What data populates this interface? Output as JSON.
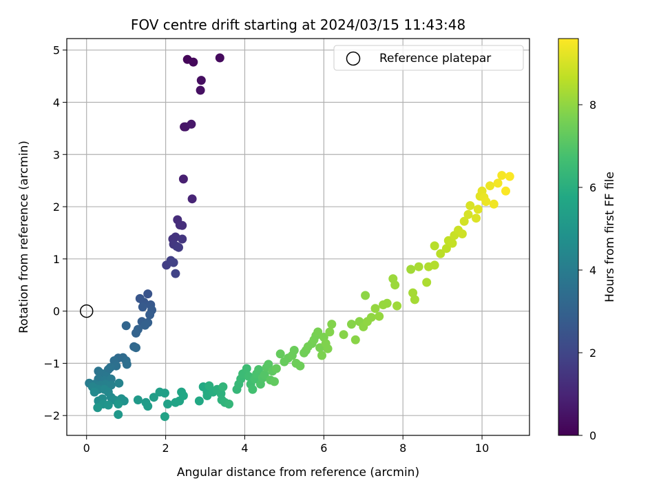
{
  "chart_data": {
    "type": "scatter",
    "title": "FOV centre drift starting at 2024/03/15 11:43:48",
    "xlabel": "Angular distance from reference (arcmin)",
    "ylabel": "Rotation from reference (arcmin)",
    "xlim": [
      -0.5,
      11.2
    ],
    "ylim": [
      -2.38,
      5.22
    ],
    "xticks": [
      0,
      2,
      4,
      6,
      8,
      10
    ],
    "yticks": [
      -2,
      -1,
      0,
      1,
      2,
      3,
      4,
      5
    ],
    "grid": true,
    "legend": {
      "location": "top-right",
      "entries": [
        "Reference platepar"
      ]
    },
    "reference_point": {
      "x": 0,
      "y": 0
    },
    "colorbar": {
      "label": "Hours from first FF file",
      "range": [
        0,
        9.6
      ],
      "ticks": [
        0,
        2,
        4,
        6,
        8
      ],
      "colormap": "viridis"
    },
    "series": [
      {
        "points": [
          {
            "x": 2.55,
            "y": 4.82,
            "h": 0.15
          },
          {
            "x": 2.7,
            "y": 4.77,
            "h": 0.2
          },
          {
            "x": 3.37,
            "y": 4.85,
            "h": 0.25
          },
          {
            "x": 2.9,
            "y": 4.42,
            "h": 0.35
          },
          {
            "x": 2.88,
            "y": 4.23,
            "h": 0.4
          },
          {
            "x": 2.47,
            "y": 3.53,
            "h": 0.5
          },
          {
            "x": 2.5,
            "y": 3.53,
            "h": 0.55
          },
          {
            "x": 2.65,
            "y": 3.58,
            "h": 0.6
          },
          {
            "x": 2.45,
            "y": 2.53,
            "h": 0.85
          },
          {
            "x": 2.67,
            "y": 2.15,
            "h": 1.0
          },
          {
            "x": 2.3,
            "y": 1.75,
            "h": 1.2
          },
          {
            "x": 2.36,
            "y": 1.65,
            "h": 1.25
          },
          {
            "x": 2.42,
            "y": 1.64,
            "h": 1.3
          },
          {
            "x": 2.18,
            "y": 1.38,
            "h": 1.4
          },
          {
            "x": 2.25,
            "y": 1.42,
            "h": 1.45
          },
          {
            "x": 2.42,
            "y": 1.38,
            "h": 1.5
          },
          {
            "x": 2.2,
            "y": 1.28,
            "h": 1.55
          },
          {
            "x": 2.28,
            "y": 1.24,
            "h": 1.6
          },
          {
            "x": 2.33,
            "y": 1.22,
            "h": 1.65
          },
          {
            "x": 2.02,
            "y": 0.88,
            "h": 1.75
          },
          {
            "x": 2.13,
            "y": 0.97,
            "h": 1.8
          },
          {
            "x": 2.2,
            "y": 0.93,
            "h": 1.85
          },
          {
            "x": 2.25,
            "y": 0.72,
            "h": 1.9
          },
          {
            "x": 1.55,
            "y": 0.33,
            "h": 2.5
          },
          {
            "x": 1.35,
            "y": 0.24,
            "h": 2.55
          },
          {
            "x": 1.45,
            "y": 0.17,
            "h": 2.6
          },
          {
            "x": 1.62,
            "y": 0.12,
            "h": 2.65
          },
          {
            "x": 1.42,
            "y": 0.08,
            "h": 2.7
          },
          {
            "x": 1.65,
            "y": 0.02,
            "h": 2.75
          },
          {
            "x": 1.6,
            "y": -0.07,
            "h": 2.8
          },
          {
            "x": 1.4,
            "y": -0.2,
            "h": 2.85
          },
          {
            "x": 1.55,
            "y": -0.22,
            "h": 2.9
          },
          {
            "x": 1.48,
            "y": -0.27,
            "h": 2.95
          },
          {
            "x": 1.3,
            "y": -0.35,
            "h": 3.0
          },
          {
            "x": 1.25,
            "y": -0.42,
            "h": 3.05
          },
          {
            "x": 1.0,
            "y": -0.28,
            "h": 3.1
          },
          {
            "x": 1.2,
            "y": -0.68,
            "h": 3.2
          },
          {
            "x": 1.25,
            "y": -0.7,
            "h": 3.25
          },
          {
            "x": 0.8,
            "y": -0.9,
            "h": 3.3
          },
          {
            "x": 0.92,
            "y": -0.89,
            "h": 3.35
          },
          {
            "x": 1.0,
            "y": -0.95,
            "h": 3.4
          },
          {
            "x": 0.7,
            "y": -0.95,
            "h": 3.45
          },
          {
            "x": 1.02,
            "y": -1.02,
            "h": 3.5
          },
          {
            "x": 0.75,
            "y": -1.05,
            "h": 3.55
          },
          {
            "x": 0.6,
            "y": -1.08,
            "h": 3.6
          },
          {
            "x": 0.55,
            "y": -1.12,
            "h": 3.65
          },
          {
            "x": 0.3,
            "y": -1.15,
            "h": 3.7
          },
          {
            "x": 0.4,
            "y": -1.2,
            "h": 3.75
          },
          {
            "x": 0.5,
            "y": -1.25,
            "h": 3.8
          },
          {
            "x": 0.3,
            "y": -1.3,
            "h": 3.85
          },
          {
            "x": 0.45,
            "y": -1.33,
            "h": 3.9
          },
          {
            "x": 0.62,
            "y": -1.3,
            "h": 3.95
          },
          {
            "x": 0.07,
            "y": -1.38,
            "h": 4.0
          },
          {
            "x": 0.2,
            "y": -1.4,
            "h": 4.05
          },
          {
            "x": 0.35,
            "y": -1.42,
            "h": 4.1
          },
          {
            "x": 0.48,
            "y": -1.4,
            "h": 4.15
          },
          {
            "x": 0.62,
            "y": -1.42,
            "h": 4.2
          },
          {
            "x": 0.82,
            "y": -1.38,
            "h": 4.25
          },
          {
            "x": 0.15,
            "y": -1.45,
            "h": 4.3
          },
          {
            "x": 0.3,
            "y": -1.5,
            "h": 4.35
          },
          {
            "x": 0.45,
            "y": -1.5,
            "h": 4.4
          },
          {
            "x": 0.55,
            "y": -1.55,
            "h": 4.45
          },
          {
            "x": 0.2,
            "y": -1.55,
            "h": 4.5
          },
          {
            "x": 0.62,
            "y": -1.65,
            "h": 4.55
          },
          {
            "x": 0.4,
            "y": -1.68,
            "h": 4.6
          },
          {
            "x": 0.3,
            "y": -1.72,
            "h": 4.65
          },
          {
            "x": 0.7,
            "y": -1.7,
            "h": 4.7
          },
          {
            "x": 0.78,
            "y": -1.72,
            "h": 4.75
          },
          {
            "x": 0.88,
            "y": -1.68,
            "h": 4.8
          },
          {
            "x": 0.95,
            "y": -1.72,
            "h": 4.85
          },
          {
            "x": 0.42,
            "y": -1.78,
            "h": 4.9
          },
          {
            "x": 0.55,
            "y": -1.8,
            "h": 4.95
          },
          {
            "x": 0.28,
            "y": -1.85,
            "h": 5.0
          },
          {
            "x": 0.8,
            "y": -1.78,
            "h": 5.05
          },
          {
            "x": 0.8,
            "y": -1.98,
            "h": 5.1
          },
          {
            "x": 1.3,
            "y": -1.7,
            "h": 5.15
          },
          {
            "x": 1.5,
            "y": -1.75,
            "h": 5.2
          },
          {
            "x": 1.55,
            "y": -1.82,
            "h": 5.25
          },
          {
            "x": 1.7,
            "y": -1.65,
            "h": 5.3
          },
          {
            "x": 1.85,
            "y": -1.55,
            "h": 5.35
          },
          {
            "x": 1.98,
            "y": -1.57,
            "h": 5.4
          },
          {
            "x": 2.05,
            "y": -1.78,
            "h": 5.45
          },
          {
            "x": 1.98,
            "y": -2.02,
            "h": 5.5
          },
          {
            "x": 2.25,
            "y": -1.75,
            "h": 5.55
          },
          {
            "x": 2.35,
            "y": -1.72,
            "h": 5.6
          },
          {
            "x": 2.4,
            "y": -1.55,
            "h": 5.65
          },
          {
            "x": 2.45,
            "y": -1.62,
            "h": 5.7
          },
          {
            "x": 2.85,
            "y": -1.72,
            "h": 5.75
          },
          {
            "x": 2.95,
            "y": -1.45,
            "h": 5.8
          },
          {
            "x": 3.05,
            "y": -1.55,
            "h": 5.85
          },
          {
            "x": 3.05,
            "y": -1.62,
            "h": 5.9
          },
          {
            "x": 3.2,
            "y": -1.55,
            "h": 5.95
          },
          {
            "x": 3.1,
            "y": -1.43,
            "h": 6.0
          },
          {
            "x": 3.3,
            "y": -1.5,
            "h": 6.05
          },
          {
            "x": 3.4,
            "y": -1.58,
            "h": 6.1
          },
          {
            "x": 3.42,
            "y": -1.7,
            "h": 6.15
          },
          {
            "x": 3.5,
            "y": -1.75,
            "h": 6.2
          },
          {
            "x": 3.45,
            "y": -1.45,
            "h": 6.25
          },
          {
            "x": 3.6,
            "y": -1.78,
            "h": 6.3
          },
          {
            "x": 3.8,
            "y": -1.5,
            "h": 6.35
          },
          {
            "x": 3.85,
            "y": -1.4,
            "h": 6.4
          },
          {
            "x": 3.9,
            "y": -1.3,
            "h": 6.45
          },
          {
            "x": 3.95,
            "y": -1.2,
            "h": 6.5
          },
          {
            "x": 4.05,
            "y": -1.1,
            "h": 6.55
          },
          {
            "x": 4.1,
            "y": -1.25,
            "h": 6.6
          },
          {
            "x": 4.15,
            "y": -1.4,
            "h": 6.65
          },
          {
            "x": 4.2,
            "y": -1.5,
            "h": 6.7
          },
          {
            "x": 4.25,
            "y": -1.3,
            "h": 6.75
          },
          {
            "x": 4.3,
            "y": -1.2,
            "h": 6.8
          },
          {
            "x": 4.35,
            "y": -1.12,
            "h": 6.85
          },
          {
            "x": 4.4,
            "y": -1.4,
            "h": 6.9
          },
          {
            "x": 4.45,
            "y": -1.28,
            "h": 6.95
          },
          {
            "x": 4.5,
            "y": -1.22,
            "h": 7.0
          },
          {
            "x": 4.55,
            "y": -1.08,
            "h": 7.05
          },
          {
            "x": 4.6,
            "y": -1.02,
            "h": 7.1
          },
          {
            "x": 4.65,
            "y": -1.32,
            "h": 7.15
          },
          {
            "x": 4.7,
            "y": -1.15,
            "h": 7.2
          },
          {
            "x": 4.75,
            "y": -1.35,
            "h": 7.25
          },
          {
            "x": 4.8,
            "y": -1.1,
            "h": 7.3
          },
          {
            "x": 4.9,
            "y": -0.82,
            "h": 7.3
          },
          {
            "x": 5.0,
            "y": -0.97,
            "h": 7.35
          },
          {
            "x": 5.1,
            "y": -0.9,
            "h": 7.35
          },
          {
            "x": 5.2,
            "y": -0.85,
            "h": 7.4
          },
          {
            "x": 5.25,
            "y": -0.75,
            "h": 7.4
          },
          {
            "x": 5.3,
            "y": -1.0,
            "h": 7.45
          },
          {
            "x": 5.4,
            "y": -1.05,
            "h": 7.45
          },
          {
            "x": 5.5,
            "y": -0.8,
            "h": 7.5
          },
          {
            "x": 5.55,
            "y": -0.75,
            "h": 7.5
          },
          {
            "x": 5.6,
            "y": -0.68,
            "h": 7.55
          },
          {
            "x": 5.7,
            "y": -0.62,
            "h": 7.55
          },
          {
            "x": 5.75,
            "y": -0.55,
            "h": 7.6
          },
          {
            "x": 5.8,
            "y": -0.47,
            "h": 7.6
          },
          {
            "x": 5.85,
            "y": -0.4,
            "h": 7.65
          },
          {
            "x": 5.9,
            "y": -0.7,
            "h": 7.65
          },
          {
            "x": 5.95,
            "y": -0.85,
            "h": 7.7
          },
          {
            "x": 6.0,
            "y": -0.5,
            "h": 7.7
          },
          {
            "x": 6.05,
            "y": -0.62,
            "h": 7.75
          },
          {
            "x": 6.1,
            "y": -0.72,
            "h": 7.75
          },
          {
            "x": 6.15,
            "y": -0.4,
            "h": 7.8
          },
          {
            "x": 6.2,
            "y": -0.25,
            "h": 7.8
          },
          {
            "x": 6.5,
            "y": -0.45,
            "h": 7.85
          },
          {
            "x": 6.7,
            "y": -0.25,
            "h": 7.85
          },
          {
            "x": 6.8,
            "y": -0.55,
            "h": 7.9
          },
          {
            "x": 6.9,
            "y": -0.2,
            "h": 7.9
          },
          {
            "x": 7.0,
            "y": -0.3,
            "h": 7.95
          },
          {
            "x": 7.05,
            "y": 0.3,
            "h": 7.95
          },
          {
            "x": 7.1,
            "y": -0.2,
            "h": 8.0
          },
          {
            "x": 7.2,
            "y": -0.12,
            "h": 8.0
          },
          {
            "x": 7.3,
            "y": 0.05,
            "h": 8.05
          },
          {
            "x": 7.4,
            "y": -0.1,
            "h": 8.05
          },
          {
            "x": 7.5,
            "y": 0.12,
            "h": 8.1
          },
          {
            "x": 7.6,
            "y": 0.15,
            "h": 8.1
          },
          {
            "x": 7.75,
            "y": 0.62,
            "h": 8.15
          },
          {
            "x": 7.8,
            "y": 0.5,
            "h": 8.15
          },
          {
            "x": 7.85,
            "y": 0.1,
            "h": 8.2
          },
          {
            "x": 8.2,
            "y": 0.8,
            "h": 8.25
          },
          {
            "x": 8.25,
            "y": 0.35,
            "h": 8.3
          },
          {
            "x": 8.3,
            "y": 0.22,
            "h": 8.3
          },
          {
            "x": 8.4,
            "y": 0.85,
            "h": 8.35
          },
          {
            "x": 8.6,
            "y": 0.55,
            "h": 8.4
          },
          {
            "x": 8.65,
            "y": 0.85,
            "h": 8.45
          },
          {
            "x": 8.8,
            "y": 0.88,
            "h": 8.5
          },
          {
            "x": 8.8,
            "y": 1.25,
            "h": 8.55
          },
          {
            "x": 8.95,
            "y": 1.1,
            "h": 8.6
          },
          {
            "x": 9.1,
            "y": 1.2,
            "h": 8.65
          },
          {
            "x": 9.15,
            "y": 1.35,
            "h": 8.7
          },
          {
            "x": 9.25,
            "y": 1.3,
            "h": 8.75
          },
          {
            "x": 9.3,
            "y": 1.45,
            "h": 8.8
          },
          {
            "x": 9.4,
            "y": 1.55,
            "h": 8.85
          },
          {
            "x": 9.5,
            "y": 1.48,
            "h": 8.9
          },
          {
            "x": 9.55,
            "y": 1.72,
            "h": 8.95
          },
          {
            "x": 9.65,
            "y": 1.85,
            "h": 9.0
          },
          {
            "x": 9.7,
            "y": 2.02,
            "h": 9.05
          },
          {
            "x": 9.85,
            "y": 1.78,
            "h": 9.1
          },
          {
            "x": 9.9,
            "y": 1.95,
            "h": 9.15
          },
          {
            "x": 9.95,
            "y": 2.2,
            "h": 9.2
          },
          {
            "x": 10.0,
            "y": 2.3,
            "h": 9.25
          },
          {
            "x": 10.05,
            "y": 2.18,
            "h": 9.3
          },
          {
            "x": 10.1,
            "y": 2.1,
            "h": 9.35
          },
          {
            "x": 10.2,
            "y": 2.4,
            "h": 9.35
          },
          {
            "x": 10.3,
            "y": 2.05,
            "h": 9.4
          },
          {
            "x": 10.4,
            "y": 2.45,
            "h": 9.45
          },
          {
            "x": 10.5,
            "y": 2.6,
            "h": 9.5
          },
          {
            "x": 10.6,
            "y": 2.3,
            "h": 9.55
          },
          {
            "x": 10.7,
            "y": 2.58,
            "h": 9.55
          }
        ]
      }
    ]
  }
}
